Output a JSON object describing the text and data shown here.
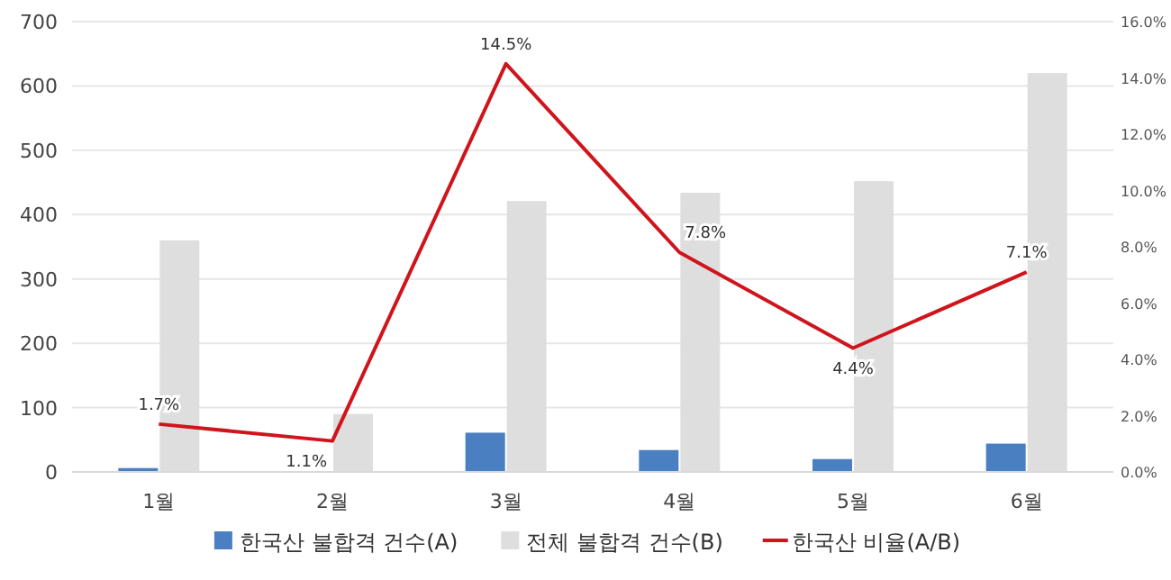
{
  "chart_data": {
    "type": "bar",
    "categories": [
      "1월",
      "2월",
      "3월",
      "4월",
      "5월",
      "6월"
    ],
    "series": [
      {
        "name": "한국산 불합격 건수(A)",
        "color": "#4a7fc1",
        "values": [
          6,
          1,
          61,
          34,
          20,
          44
        ]
      },
      {
        "name": "전체 불합격 건수(B)",
        "color": "#dedede",
        "values": [
          360,
          90,
          421,
          434,
          452,
          620
        ]
      },
      {
        "name": "한국산 비율(A/B)",
        "color": "#d0141c",
        "type": "line",
        "axis": "y2",
        "values": [
          1.7,
          1.1,
          14.5,
          7.8,
          4.4,
          7.1
        ],
        "value_labels": [
          "1.7%",
          "1.1%",
          "14.5%",
          "7.8%",
          "4.4%",
          "7.1%"
        ]
      }
    ],
    "ylim": [
      0,
      700
    ],
    "yticks": [
      0,
      100,
      200,
      300,
      400,
      500,
      600,
      700
    ],
    "y2lim": [
      0,
      16
    ],
    "y2ticks": [
      {
        "value": 0,
        "label": "0.0%"
      },
      {
        "value": 2,
        "label": "2.0%"
      },
      {
        "value": 4,
        "label": "4.0%"
      },
      {
        "value": 6,
        "label": "6.0%"
      },
      {
        "value": 8,
        "label": "8.0%"
      },
      {
        "value": 10,
        "label": "10.0%"
      },
      {
        "value": 12,
        "label": "12.0%"
      },
      {
        "value": 14,
        "label": "14.0%"
      },
      {
        "value": 16,
        "label": "16.0%"
      }
    ],
    "grid": "y",
    "legend": "bottom",
    "marker": "none"
  }
}
